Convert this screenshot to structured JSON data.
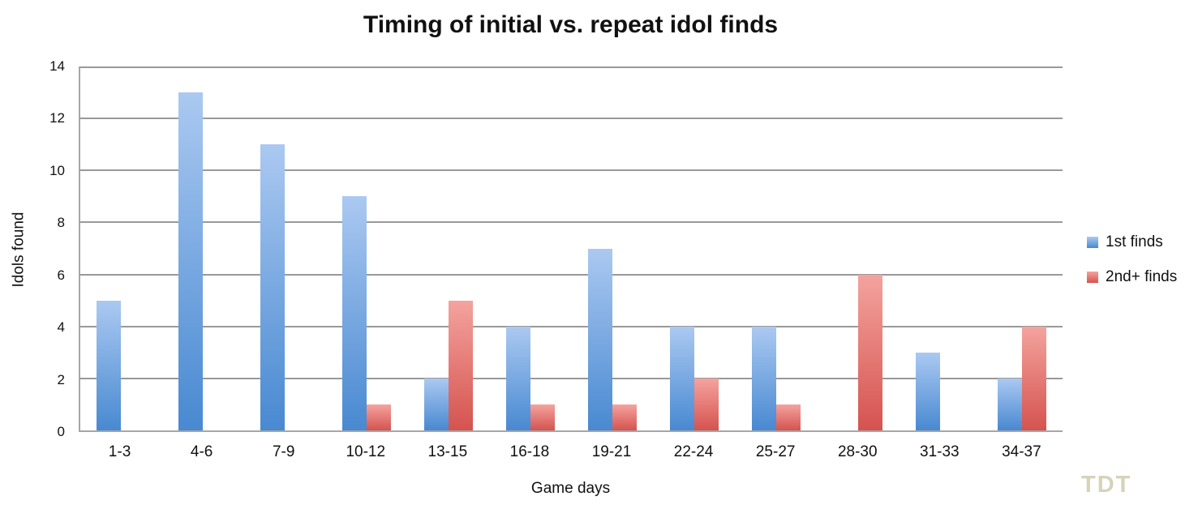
{
  "watermark": "TDT",
  "colors": {
    "gridline": "#999999",
    "axis": "#a6a6a6",
    "text": "#111111",
    "watermark": "#d5d3b9"
  },
  "chart_data": {
    "type": "bar",
    "title": "Timing of initial vs. repeat idol finds",
    "xlabel": "Game days",
    "ylabel": "Idols found",
    "ylim": [
      0,
      14
    ],
    "yticks": [
      0,
      2,
      4,
      6,
      8,
      10,
      12,
      14
    ],
    "grid": true,
    "legend_position": "right",
    "categories": [
      "1-3",
      "4-6",
      "7-9",
      "10-12",
      "13-15",
      "16-18",
      "19-21",
      "22-24",
      "25-27",
      "28-30",
      "31-33",
      "34-37"
    ],
    "series": [
      {
        "name": "1st finds",
        "color_top": "#abc9f1",
        "color_bottom": "#4889d1",
        "values": [
          5,
          13,
          11,
          9,
          2,
          4,
          7,
          4,
          4,
          0,
          3,
          2
        ]
      },
      {
        "name": "2nd+ finds",
        "color_top": "#f4a39e",
        "color_bottom": "#d5534f",
        "values": [
          0,
          0,
          0,
          1,
          5,
          1,
          1,
          2,
          1,
          6,
          0,
          4
        ]
      }
    ]
  }
}
